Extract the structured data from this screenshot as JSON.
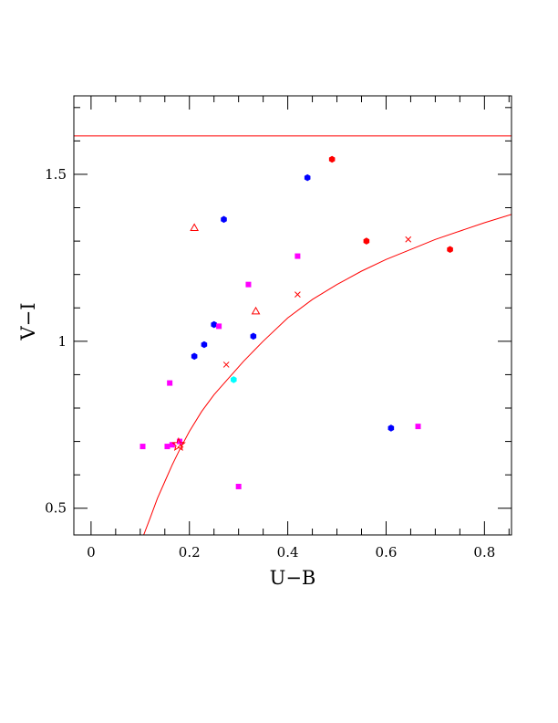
{
  "chart_data": {
    "type": "scatter",
    "title": "",
    "xlabel": "U−B",
    "ylabel": "V−I",
    "xlim": [
      -0.035,
      0.855
    ],
    "ylim": [
      0.42,
      1.735
    ],
    "x_ticks": [
      {
        "value": 0,
        "label": "0"
      },
      {
        "value": 0.2,
        "label": "0.2"
      },
      {
        "value": 0.4,
        "label": "0.4"
      },
      {
        "value": 0.6,
        "label": "0.6"
      },
      {
        "value": 0.8,
        "label": "0.8"
      }
    ],
    "y_ticks": [
      {
        "value": 0.5,
        "label": "0.5"
      },
      {
        "value": 1,
        "label": "1"
      },
      {
        "value": 1.5,
        "label": "1.5"
      }
    ],
    "x_minor_step": 0.05,
    "y_minor_step": 0.1,
    "grid": false,
    "colors": {
      "red": "#ff0000",
      "blue": "#0000ff",
      "magenta": "#ff00ff",
      "cyan": "#00ffff",
      "line": "#ff0000"
    },
    "horizontal_line": {
      "y": 1.615,
      "color": "#ff0000"
    },
    "model_curve": {
      "color": "#ff0000",
      "points": [
        [
          0.107,
          0.42
        ],
        [
          0.12,
          0.47
        ],
        [
          0.135,
          0.53
        ],
        [
          0.15,
          0.58
        ],
        [
          0.165,
          0.63
        ],
        [
          0.18,
          0.675
        ],
        [
          0.2,
          0.73
        ],
        [
          0.225,
          0.79
        ],
        [
          0.25,
          0.84
        ],
        [
          0.28,
          0.89
        ],
        [
          0.31,
          0.94
        ],
        [
          0.35,
          1.0
        ],
        [
          0.4,
          1.07
        ],
        [
          0.45,
          1.125
        ],
        [
          0.5,
          1.17
        ],
        [
          0.55,
          1.21
        ],
        [
          0.6,
          1.245
        ],
        [
          0.65,
          1.275
        ],
        [
          0.7,
          1.305
        ],
        [
          0.75,
          1.33
        ],
        [
          0.8,
          1.355
        ],
        [
          0.855,
          1.38
        ]
      ],
      "markers": [
        [
          0.182,
          0.69
        ],
        [
          0.275,
          0.93
        ],
        [
          0.42,
          1.14
        ],
        [
          0.645,
          1.305
        ]
      ]
    },
    "series": [
      {
        "marker": "hexagon",
        "color": "#ff0000",
        "points": [
          [
            0.49,
            1.545
          ],
          [
            0.56,
            1.3
          ],
          [
            0.73,
            1.275
          ]
        ]
      },
      {
        "marker": "hexagon",
        "color": "#0000ff",
        "points": [
          [
            0.44,
            1.49
          ],
          [
            0.27,
            1.365
          ],
          [
            0.25,
            1.05
          ],
          [
            0.33,
            1.015
          ],
          [
            0.23,
            0.99
          ],
          [
            0.21,
            0.955
          ],
          [
            0.61,
            0.74
          ]
        ]
      },
      {
        "marker": "square",
        "color": "#ff00ff",
        "points": [
          [
            0.42,
            1.255
          ],
          [
            0.32,
            1.17
          ],
          [
            0.26,
            1.045
          ],
          [
            0.16,
            0.875
          ],
          [
            0.105,
            0.685
          ],
          [
            0.155,
            0.685
          ],
          [
            0.165,
            0.69
          ],
          [
            0.18,
            0.7
          ],
          [
            0.665,
            0.745
          ],
          [
            0.3,
            0.565
          ]
        ]
      },
      {
        "marker": "hexagon",
        "color": "#00ffff",
        "points": [
          [
            0.29,
            0.885
          ]
        ]
      },
      {
        "marker": "triangle",
        "color": "#ff0000",
        "points": [
          [
            0.21,
            1.34
          ],
          [
            0.335,
            1.09
          ]
        ]
      },
      {
        "marker": "star",
        "color": "#ff0000",
        "points": [
          [
            0.178,
            0.69
          ]
        ]
      }
    ]
  }
}
